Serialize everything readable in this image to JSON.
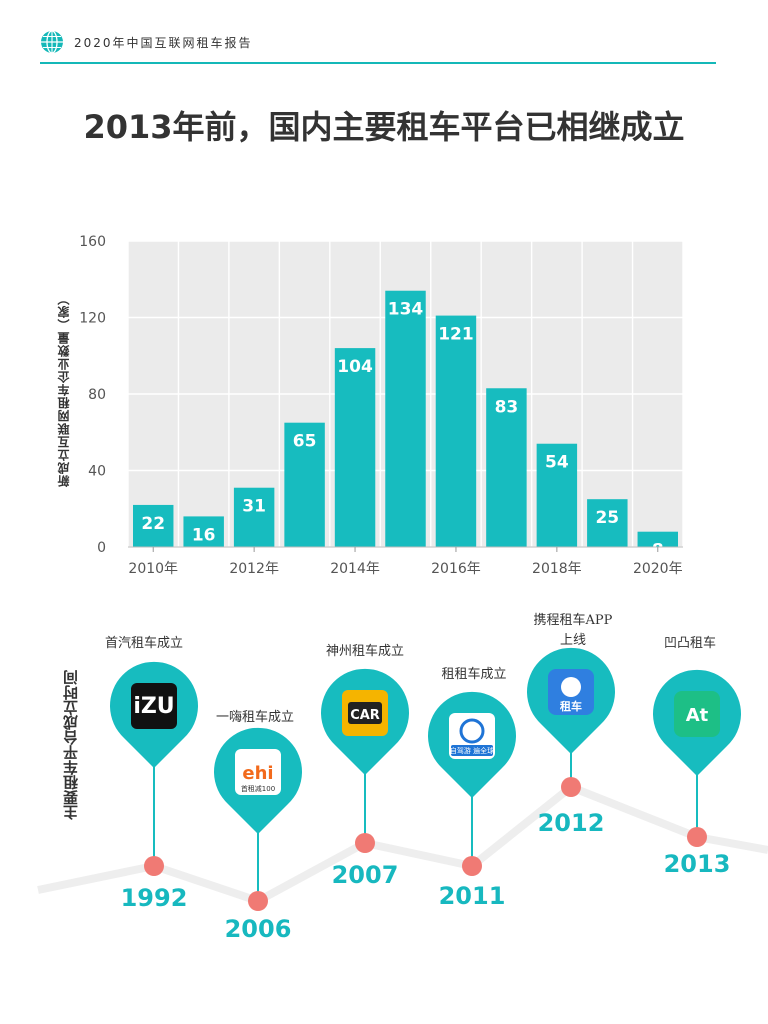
{
  "header": {
    "title": "2020年中国互联网租车报告"
  },
  "page_title": "2013年前，国内主要租车平台已相继成立",
  "chart_data": {
    "type": "bar",
    "title": "",
    "xlabel": "",
    "ylabel": "新成立互联网租车企业数量（家）",
    "categories": [
      "2010",
      "2011",
      "2012",
      "2013",
      "2014",
      "2015",
      "2016",
      "2017",
      "2018",
      "2019",
      "2020"
    ],
    "values": [
      22,
      16,
      31,
      65,
      104,
      134,
      121,
      83,
      54,
      25,
      8
    ],
    "x_tick_labels": [
      "2010年",
      "2012年",
      "2014年",
      "2016年",
      "2018年",
      "2020年"
    ],
    "y_ticks": [
      0,
      40,
      80,
      120,
      160
    ],
    "ylim": [
      0,
      160
    ],
    "grid": true,
    "bar_color": "#17bcbf"
  },
  "timeline": {
    "label": "主要租车平台成立时间",
    "events": [
      {
        "year": "1992",
        "caption": "首汽租车成立",
        "logo_text": "iZU",
        "logo_sub": ""
      },
      {
        "year": "2006",
        "caption": "一嗨租车成立",
        "logo_text": "ehi",
        "logo_sub": "首租减100"
      },
      {
        "year": "2007",
        "caption": "神州租车成立",
        "logo_text": "CAR",
        "logo_sub": ""
      },
      {
        "year": "2011",
        "caption": "租租车成立",
        "logo_text": "",
        "logo_sub": "自驾游 遍全球"
      },
      {
        "year": "2012",
        "caption": "携程租车APP上线",
        "logo_text": "租车",
        "logo_sub": ""
      },
      {
        "year": "2013",
        "caption": "凹凸租车",
        "logo_text": "At",
        "logo_sub": ""
      }
    ]
  },
  "colors": {
    "accent": "#17bcbf",
    "dot": "#f07a74",
    "year": "#17b8bf"
  }
}
